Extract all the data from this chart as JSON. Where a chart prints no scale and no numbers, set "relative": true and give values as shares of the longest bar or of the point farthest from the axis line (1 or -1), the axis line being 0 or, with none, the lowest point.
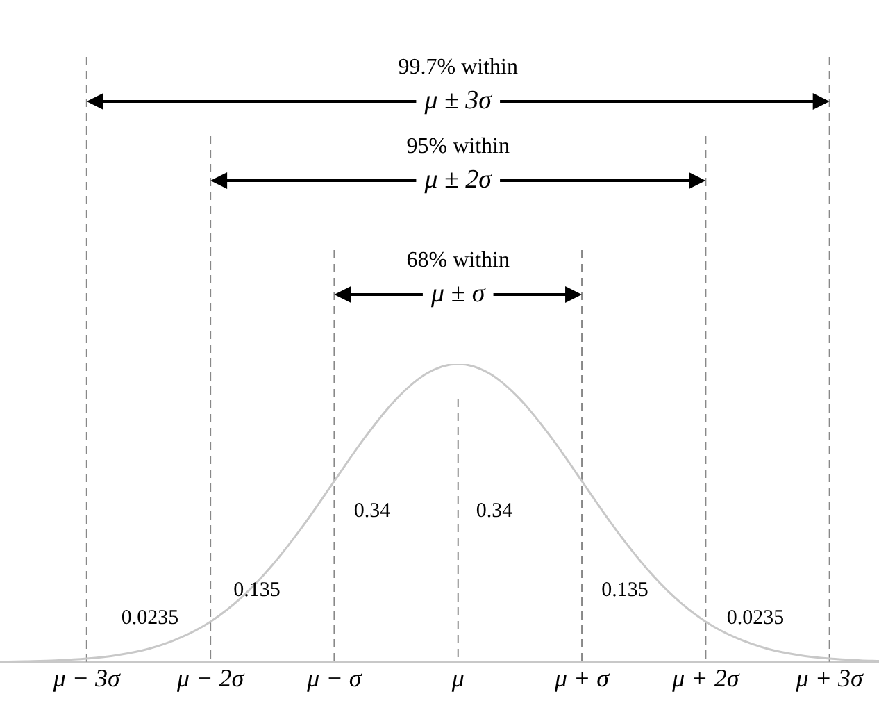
{
  "chart_data": {
    "type": "line",
    "relative": true,
    "x": [
      -3.7,
      -3.5,
      -3.25,
      -3,
      -2.75,
      -2.5,
      -2.25,
      -2,
      -1.75,
      -1.5,
      -1.25,
      -1,
      -0.75,
      -0.5,
      -0.25,
      0,
      0.25,
      0.5,
      0.75,
      1,
      1.25,
      1.5,
      1.75,
      2,
      2.25,
      2.5,
      2.75,
      3,
      3.25,
      3.4
    ],
    "series": [
      {
        "color": "#c8c8c8",
        "values": [
          0,
          0.002,
          0.005,
          0.011,
          0.023,
          0.044,
          0.08,
          0.135,
          0.216,
          0.325,
          0.458,
          0.607,
          0.755,
          0.882,
          0.969,
          1,
          0.969,
          0.882,
          0.755,
          0.607,
          0.458,
          0.325,
          0.216,
          0.135,
          0.08,
          0.044,
          0.023,
          0.011,
          0.005,
          0.003
        ]
      }
    ],
    "xticks": [
      {
        "value": -3,
        "label": "μ − 3σ"
      },
      {
        "value": -2,
        "label": "μ − 2σ"
      },
      {
        "value": -1,
        "label": "μ − σ"
      },
      {
        "value": 0,
        "label": "μ"
      },
      {
        "value": 1,
        "label": "μ + σ"
      },
      {
        "value": 2,
        "label": "μ + 2σ"
      },
      {
        "value": 3,
        "label": "μ + 3σ"
      }
    ],
    "xlim": [
      -3.7,
      3.4
    ],
    "tick_labels": "x",
    "grid": false,
    "legend": false,
    "ref_lines": [
      {
        "axis": "x",
        "value": -3,
        "color": "#888888",
        "line_style": "dashed"
      },
      {
        "axis": "x",
        "value": -2,
        "color": "#888888",
        "line_style": "dashed"
      },
      {
        "axis": "x",
        "value": -1,
        "color": "#888888",
        "line_style": "dashed"
      },
      {
        "axis": "x",
        "value": 0,
        "color": "#888888",
        "line_style": "dashed"
      },
      {
        "axis": "x",
        "value": 1,
        "color": "#888888",
        "line_style": "dashed"
      },
      {
        "axis": "x",
        "value": 2,
        "color": "#888888",
        "line_style": "dashed"
      },
      {
        "axis": "x",
        "value": 3,
        "color": "#888888",
        "line_style": "dashed"
      }
    ],
    "annotations": [
      "99.7% within",
      "μ ± 3σ",
      "95% within",
      "μ ± 2σ",
      "68% within",
      "μ ± σ",
      "0.0235",
      "0.135",
      "0.34",
      "0.34",
      "0.135",
      "0.0235"
    ]
  }
}
